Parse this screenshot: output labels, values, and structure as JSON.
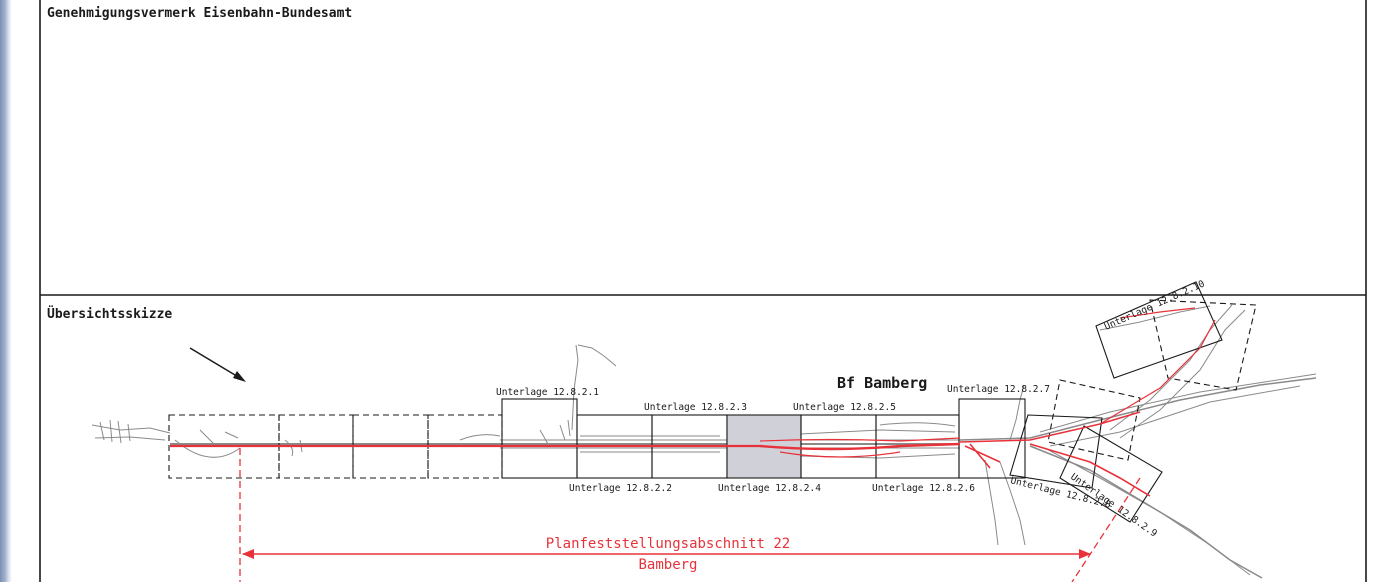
{
  "sections": {
    "approval_title": "Genehmigungsvermerk Eisenbahn-Bundesamt",
    "overview_title": "Übersichtsskizze"
  },
  "station_label": "Bf Bamberg",
  "sheet_labels": [
    "Unterlage 12.8.2.1",
    "Unterlage 12.8.2.2",
    "Unterlage 12.8.2.3",
    "Unterlage 12.8.2.4",
    "Unterlage 12.8.2.5",
    "Unterlage 12.8.2.6",
    "Unterlage 12.8.2.7",
    "Unterlage 12.8.2.8",
    "Unterlage 12.8.2.9",
    "Unterlage 12.8.2.10"
  ],
  "section_span": {
    "line1": "Planfeststellungsabschnitt 22",
    "line2": "Bamberg"
  },
  "colors": {
    "frame": "#1a1a1a",
    "track_red": "#e8323a",
    "network_gray": "#8a8a8a",
    "highlight_sheet": "#d0d0d8"
  },
  "icons": {
    "north_arrow": "arrow-icon"
  }
}
